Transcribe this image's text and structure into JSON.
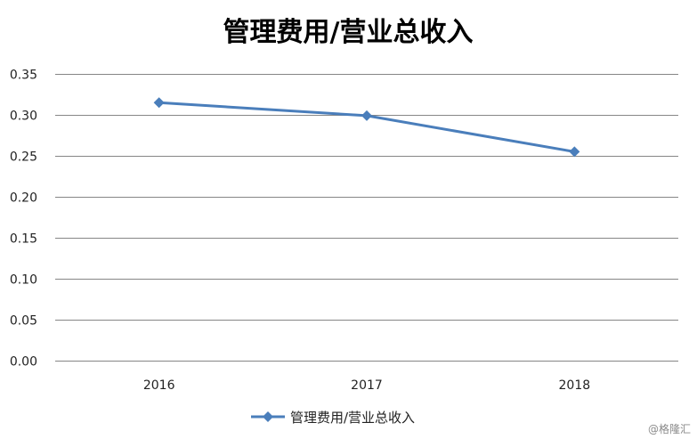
{
  "chart_data": {
    "type": "line",
    "title": "管理费用/营业总收入",
    "categories": [
      "2016",
      "2017",
      "2018"
    ],
    "series": [
      {
        "name": "管理费用/营业总收入",
        "values": [
          0.315,
          0.299,
          0.255
        ],
        "color": "#4a7ebb",
        "marker": "diamond"
      }
    ],
    "ylim": [
      0,
      0.35
    ],
    "yticks": [
      "0.00",
      "0.05",
      "0.10",
      "0.15",
      "0.20",
      "0.25",
      "0.30",
      "0.35"
    ],
    "grid": true,
    "legend": "bottom-center",
    "gridline_color": "#868686"
  },
  "watermark": "@格隆汇"
}
